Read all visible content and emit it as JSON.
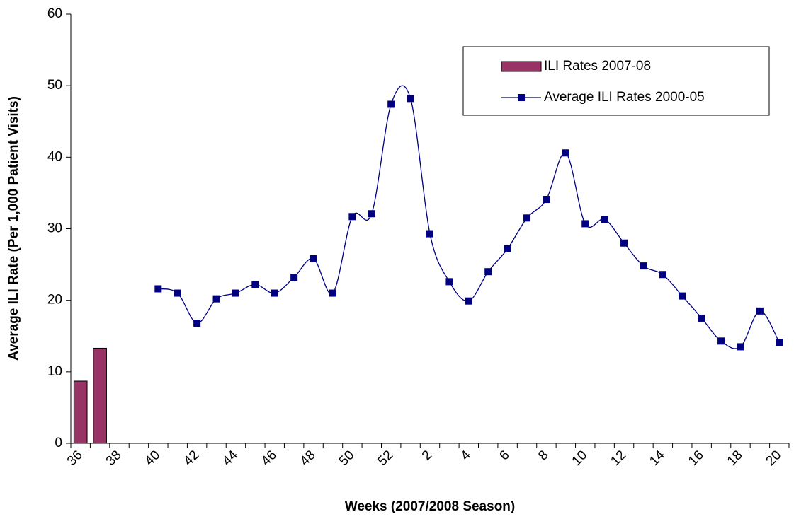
{
  "chart_data": {
    "type": "bar-line",
    "x_label": "Weeks (2007/2008 Season)",
    "y_label": "Average ILI Rate (Per 1,000 Patient Visits)",
    "categories": [
      "36",
      null,
      "38",
      null,
      "40",
      null,
      "42",
      null,
      "44",
      null,
      "46",
      null,
      "48",
      null,
      "50",
      null,
      "52",
      null,
      "2",
      null,
      "4",
      null,
      "6",
      null,
      "8",
      null,
      "10",
      null,
      "12",
      null,
      "14",
      null,
      "16",
      null,
      "18",
      null,
      "20"
    ],
    "series": [
      {
        "name": "ILI Rates 2007-08",
        "type": "bar",
        "color": "#993366",
        "values": [
          8.7,
          13.3,
          null,
          null,
          null,
          null,
          null,
          null,
          null,
          null,
          null,
          null,
          null,
          null,
          null,
          null,
          null,
          null,
          null,
          null,
          null,
          null,
          null,
          null,
          null,
          null,
          null,
          null,
          null,
          null,
          null,
          null,
          null,
          null,
          null,
          null,
          null
        ]
      },
      {
        "name": "Average ILI Rates 2000-05",
        "type": "line",
        "color": "#000080",
        "smooth": true,
        "values": [
          null,
          null,
          null,
          null,
          21.6,
          21.0,
          16.8,
          20.2,
          21.0,
          22.2,
          21.0,
          23.2,
          25.8,
          21.0,
          31.7,
          32.1,
          47.4,
          48.2,
          29.3,
          22.6,
          19.9,
          24.0,
          27.2,
          31.5,
          34.1,
          40.6,
          30.7,
          31.3,
          28.0,
          24.8,
          23.6,
          20.6,
          17.5,
          14.3,
          13.5,
          18.5,
          14.1
        ]
      }
    ],
    "ylim": [
      0,
      60
    ],
    "yticks": [
      0,
      10,
      20,
      30,
      40,
      50,
      60
    ],
    "grid": false,
    "legend": "upper right"
  }
}
